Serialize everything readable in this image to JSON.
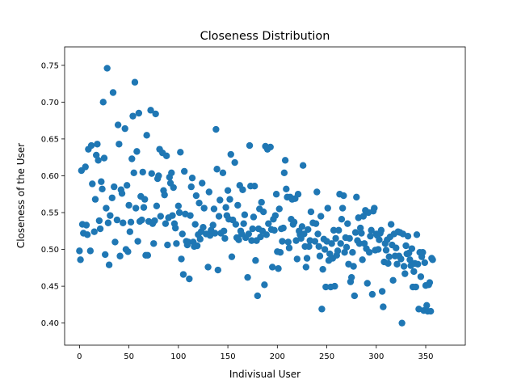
{
  "chart_data": {
    "type": "scatter",
    "title": "Closeness Distribution",
    "xlabel": "Indivisual User",
    "ylabel": "Closeness of the User",
    "xlim": [
      -15,
      390
    ],
    "ylim": [
      0.37,
      0.775
    ],
    "xticks": [
      0,
      50,
      100,
      150,
      200,
      250,
      300,
      350
    ],
    "yticks": [
      0.4,
      0.45,
      0.5,
      0.55,
      0.6,
      0.65,
      0.7,
      0.75
    ],
    "ytick_labels": [
      "0.40",
      "0.45",
      "0.50",
      "0.55",
      "0.60",
      "0.65",
      "0.70",
      "0.75"
    ],
    "grid": false,
    "color": "#1f77b4",
    "points": [
      [
        0,
        0.498
      ],
      [
        1,
        0.486
      ],
      [
        2,
        0.607
      ],
      [
        3,
        0.534
      ],
      [
        4,
        0.522
      ],
      [
        6,
        0.612
      ],
      [
        7,
        0.533
      ],
      [
        8,
        0.52
      ],
      [
        9,
        0.636
      ],
      [
        11,
        0.498
      ],
      [
        12,
        0.641
      ],
      [
        13,
        0.589
      ],
      [
        15,
        0.524
      ],
      [
        16,
        0.568
      ],
      [
        17,
        0.628
      ],
      [
        18,
        0.643
      ],
      [
        19,
        0.621
      ],
      [
        20,
        0.539
      ],
      [
        21,
        0.528
      ],
      [
        22,
        0.592
      ],
      [
        23,
        0.582
      ],
      [
        24,
        0.7
      ],
      [
        25,
        0.624
      ],
      [
        26,
        0.493
      ],
      [
        27,
        0.556
      ],
      [
        28,
        0.746
      ],
      [
        29,
        0.536
      ],
      [
        30,
        0.479
      ],
      [
        31,
        0.546
      ],
      [
        33,
        0.57
      ],
      [
        34,
        0.713
      ],
      [
        35,
        0.585
      ],
      [
        36,
        0.51
      ],
      [
        38,
        0.54
      ],
      [
        39,
        0.669
      ],
      [
        40,
        0.643
      ],
      [
        41,
        0.491
      ],
      [
        42,
        0.581
      ],
      [
        43,
        0.576
      ],
      [
        44,
        0.536
      ],
      [
        46,
        0.664
      ],
      [
        47,
        0.5
      ],
      [
        48,
        0.587
      ],
      [
        49,
        0.497
      ],
      [
        50,
        0.56
      ],
      [
        51,
        0.524
      ],
      [
        52,
        0.537
      ],
      [
        53,
        0.623
      ],
      [
        54,
        0.681
      ],
      [
        55,
        0.604
      ],
      [
        56,
        0.727
      ],
      [
        57,
        0.556
      ],
      [
        58,
        0.633
      ],
      [
        59,
        0.511
      ],
      [
        60,
        0.685
      ],
      [
        61,
        0.538
      ],
      [
        62,
        0.572
      ],
      [
        63,
        0.54
      ],
      [
        64,
        0.605
      ],
      [
        65,
        0.557
      ],
      [
        66,
        0.568
      ],
      [
        67,
        0.492
      ],
      [
        68,
        0.655
      ],
      [
        69,
        0.492
      ],
      [
        70,
        0.538
      ],
      [
        72,
        0.689
      ],
      [
        73,
        0.603
      ],
      [
        74,
        0.535
      ],
      [
        75,
        0.508
      ],
      [
        76,
        0.539
      ],
      [
        77,
        0.684
      ],
      [
        78,
        0.559
      ],
      [
        79,
        0.596
      ],
      [
        80,
        0.6
      ],
      [
        81,
        0.636
      ],
      [
        82,
        0.545
      ],
      [
        84,
        0.631
      ],
      [
        85,
        0.58
      ],
      [
        86,
        0.574
      ],
      [
        87,
        0.535
      ],
      [
        88,
        0.627
      ],
      [
        89,
        0.506
      ],
      [
        90,
        0.543
      ],
      [
        91,
        0.598
      ],
      [
        92,
        0.59
      ],
      [
        93,
        0.604
      ],
      [
        94,
        0.546
      ],
      [
        95,
        0.584
      ],
      [
        96,
        0.535
      ],
      [
        97,
        0.529
      ],
      [
        98,
        0.508
      ],
      [
        100,
        0.559
      ],
      [
        101,
        0.55
      ],
      [
        102,
        0.632
      ],
      [
        103,
        0.487
      ],
      [
        104,
        0.521
      ],
      [
        105,
        0.466
      ],
      [
        106,
        0.606
      ],
      [
        107,
        0.548
      ],
      [
        108,
        0.511
      ],
      [
        109,
        0.506
      ],
      [
        110,
        0.51
      ],
      [
        111,
        0.46
      ],
      [
        112,
        0.546
      ],
      [
        113,
        0.585
      ],
      [
        114,
        0.597
      ],
      [
        115,
        0.51
      ],
      [
        116,
        0.504
      ],
      [
        117,
        0.534
      ],
      [
        118,
        0.573
      ],
      [
        119,
        0.505
      ],
      [
        120,
        0.52
      ],
      [
        121,
        0.563
      ],
      [
        122,
        0.514
      ],
      [
        123,
        0.524
      ],
      [
        124,
        0.59
      ],
      [
        125,
        0.53
      ],
      [
        126,
        0.556
      ],
      [
        128,
        0.521
      ],
      [
        130,
        0.476
      ],
      [
        131,
        0.578
      ],
      [
        132,
        0.519
      ],
      [
        133,
        0.526
      ],
      [
        135,
        0.533
      ],
      [
        136,
        0.555
      ],
      [
        137,
        0.522
      ],
      [
        138,
        0.663
      ],
      [
        139,
        0.609
      ],
      [
        140,
        0.472
      ],
      [
        141,
        0.545
      ],
      [
        142,
        0.567
      ],
      [
        143,
        0.522
      ],
      [
        145,
        0.604
      ],
      [
        146,
        0.525
      ],
      [
        147,
        0.515
      ],
      [
        148,
        0.557
      ],
      [
        149,
        0.546
      ],
      [
        150,
        0.58
      ],
      [
        151,
        0.541
      ],
      [
        152,
        0.568
      ],
      [
        153,
        0.629
      ],
      [
        154,
        0.49
      ],
      [
        155,
        0.54
      ],
      [
        157,
        0.618
      ],
      [
        158,
        0.534
      ],
      [
        159,
        0.516
      ],
      [
        160,
        0.56
      ],
      [
        161,
        0.513
      ],
      [
        162,
        0.587
      ],
      [
        163,
        0.525
      ],
      [
        164,
        0.521
      ],
      [
        165,
        0.581
      ],
      [
        166,
        0.535
      ],
      [
        167,
        0.547
      ],
      [
        168,
        0.516
      ],
      [
        170,
        0.462
      ],
      [
        171,
        0.521
      ],
      [
        172,
        0.641
      ],
      [
        173,
        0.586
      ],
      [
        174,
        0.512
      ],
      [
        175,
        0.528
      ],
      [
        176,
        0.544
      ],
      [
        177,
        0.586
      ],
      [
        178,
        0.485
      ],
      [
        179,
        0.512
      ],
      [
        180,
        0.437
      ],
      [
        181,
        0.528
      ],
      [
        182,
        0.555
      ],
      [
        183,
        0.517
      ],
      [
        184,
        0.564
      ],
      [
        185,
        0.525
      ],
      [
        186,
        0.551
      ],
      [
        187,
        0.452
      ],
      [
        188,
        0.64
      ],
      [
        189,
        0.52
      ],
      [
        190,
        0.636
      ],
      [
        191,
        0.535
      ],
      [
        193,
        0.639
      ],
      [
        194,
        0.527
      ],
      [
        195,
        0.476
      ],
      [
        196,
        0.541
      ],
      [
        197,
        0.526
      ],
      [
        198,
        0.546
      ],
      [
        199,
        0.575
      ],
      [
        200,
        0.497
      ],
      [
        201,
        0.474
      ],
      [
        202,
        0.555
      ],
      [
        203,
        0.496
      ],
      [
        204,
        0.528
      ],
      [
        205,
        0.511
      ],
      [
        206,
        0.529
      ],
      [
        207,
        0.604
      ],
      [
        208,
        0.621
      ],
      [
        209,
        0.582
      ],
      [
        210,
        0.571
      ],
      [
        211,
        0.51
      ],
      [
        212,
        0.502
      ],
      [
        213,
        0.571
      ],
      [
        214,
        0.541
      ],
      [
        215,
        0.568
      ],
      [
        216,
        0.534
      ],
      [
        217,
        0.537
      ],
      [
        218,
        0.569
      ],
      [
        219,
        0.512
      ],
      [
        220,
        0.487
      ],
      [
        221,
        0.575
      ],
      [
        222,
        0.525
      ],
      [
        223,
        0.52
      ],
      [
        224,
        0.515
      ],
      [
        225,
        0.531
      ],
      [
        226,
        0.614
      ],
      [
        227,
        0.521
      ],
      [
        228,
        0.504
      ],
      [
        229,
        0.476
      ],
      [
        230,
        0.488
      ],
      [
        231,
        0.527
      ],
      [
        232,
        0.504
      ],
      [
        233,
        0.512
      ],
      [
        234,
        0.551
      ],
      [
        236,
        0.536
      ],
      [
        238,
        0.511
      ],
      [
        239,
        0.535
      ],
      [
        240,
        0.578
      ],
      [
        241,
        0.521
      ],
      [
        242,
        0.504
      ],
      [
        243,
        0.491
      ],
      [
        244,
        0.545
      ],
      [
        245,
        0.419
      ],
      [
        246,
        0.473
      ],
      [
        247,
        0.514
      ],
      [
        248,
        0.5
      ],
      [
        249,
        0.449
      ],
      [
        250,
        0.511
      ],
      [
        251,
        0.556
      ],
      [
        252,
        0.485
      ],
      [
        253,
        0.494
      ],
      [
        254,
        0.449
      ],
      [
        255,
        0.508
      ],
      [
        256,
        0.488
      ],
      [
        257,
        0.526
      ],
      [
        258,
        0.45
      ],
      [
        259,
        0.515
      ],
      [
        260,
        0.492
      ],
      [
        261,
        0.498
      ],
      [
        262,
        0.526
      ],
      [
        263,
        0.575
      ],
      [
        264,
        0.508
      ],
      [
        265,
        0.541
      ],
      [
        266,
        0.556
      ],
      [
        267,
        0.573
      ],
      [
        268,
        0.496
      ],
      [
        269,
        0.516
      ],
      [
        270,
        0.503
      ],
      [
        271,
        0.535
      ],
      [
        272,
        0.48
      ],
      [
        273,
        0.515
      ],
      [
        274,
        0.456
      ],
      [
        275,
        0.462
      ],
      [
        276,
        0.496
      ],
      [
        277,
        0.477
      ],
      [
        278,
        0.437
      ],
      [
        279,
        0.523
      ],
      [
        280,
        0.571
      ],
      [
        281,
        0.512
      ],
      [
        282,
        0.543
      ],
      [
        283,
        0.508
      ],
      [
        284,
        0.529
      ],
      [
        285,
        0.522
      ],
      [
        286,
        0.486
      ],
      [
        287,
        0.545
      ],
      [
        288,
        0.508
      ],
      [
        289,
        0.553
      ],
      [
        290,
        0.501
      ],
      [
        291,
        0.454
      ],
      [
        292,
        0.55
      ],
      [
        293,
        0.496
      ],
      [
        294,
        0.518
      ],
      [
        295,
        0.526
      ],
      [
        296,
        0.439
      ],
      [
        297,
        0.552
      ],
      [
        298,
        0.556
      ],
      [
        299,
        0.499
      ],
      [
        300,
        0.521
      ],
      [
        301,
        0.519
      ],
      [
        302,
        0.5
      ],
      [
        303,
        0.513
      ],
      [
        304,
        0.522
      ],
      [
        305,
        0.526
      ],
      [
        306,
        0.443
      ],
      [
        307,
        0.422
      ],
      [
        308,
        0.483
      ],
      [
        309,
        0.508
      ],
      [
        310,
        0.499
      ],
      [
        311,
        0.513
      ],
      [
        312,
        0.481
      ],
      [
        313,
        0.49
      ],
      [
        314,
        0.517
      ],
      [
        315,
        0.534
      ],
      [
        316,
        0.506
      ],
      [
        317,
        0.458
      ],
      [
        318,
        0.521
      ],
      [
        319,
        0.491
      ],
      [
        320,
        0.502
      ],
      [
        321,
        0.48
      ],
      [
        322,
        0.524
      ],
      [
        323,
        0.491
      ],
      [
        324,
        0.523
      ],
      [
        325,
        0.487
      ],
      [
        326,
        0.4
      ],
      [
        327,
        0.521
      ],
      [
        328,
        0.477
      ],
      [
        329,
        0.467
      ],
      [
        330,
        0.505
      ],
      [
        331,
        0.494
      ],
      [
        332,
        0.518
      ],
      [
        333,
        0.495
      ],
      [
        334,
        0.486
      ],
      [
        335,
        0.478
      ],
      [
        336,
        0.501
      ],
      [
        337,
        0.449
      ],
      [
        338,
        0.47
      ],
      [
        339,
        0.481
      ],
      [
        340,
        0.449
      ],
      [
        341,
        0.52
      ],
      [
        342,
        0.48
      ],
      [
        343,
        0.419
      ],
      [
        344,
        0.496
      ],
      [
        345,
        0.463
      ],
      [
        346,
        0.49
      ],
      [
        347,
        0.496
      ],
      [
        348,
        0.417
      ],
      [
        349,
        0.482
      ],
      [
        350,
        0.451
      ],
      [
        351,
        0.424
      ],
      [
        352,
        0.416
      ],
      [
        353,
        0.452
      ],
      [
        354,
        0.455
      ],
      [
        355,
        0.416
      ],
      [
        356,
        0.488
      ],
      [
        357,
        0.486
      ]
    ]
  }
}
